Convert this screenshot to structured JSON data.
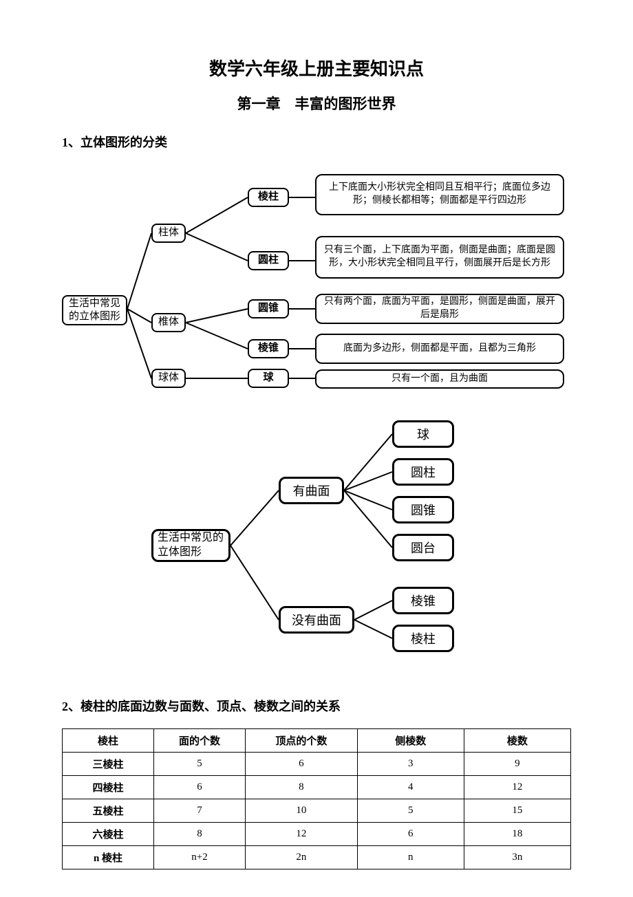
{
  "colors": {
    "text": "#000000",
    "background": "#ffffff",
    "border": "#000000"
  },
  "title": "数学六年级上册主要知识点",
  "chapter": "第一章　丰富的图形世界",
  "section1": "1、立体图形的分类",
  "section2": "2、棱柱的底面边数与面数、顶点、棱数之间的关系",
  "diagram1": {
    "type": "tree",
    "root": "生活中常见的立体图形",
    "branches": {
      "b1": "柱体",
      "b2": "椎体",
      "b3": "球体",
      "b1a": "棱柱",
      "b1b": "圆柱",
      "b2a": "圆锥",
      "b2b": "棱锥",
      "b3a": "球"
    },
    "descriptions": {
      "d1a": "上下底面大小形状完全相同且互相平行；底面位多边形；侧棱长都相等；侧面都是平行四边形",
      "d1b": "只有三个面，上下底面为平面，侧面是曲面；底面是圆形，大小形状完全相同且平行，侧面展开后是长方形",
      "d2a": "只有两个面，底面为平面，是圆形，侧面是曲面，展开后是扇形",
      "d2b": "底面为多边形，侧面都是平面，且都为三角形",
      "d3a": "只有一个面，且为曲面"
    }
  },
  "diagram2": {
    "type": "tree",
    "root": "生活中常见的立体图形",
    "branch1": "有曲面",
    "branch2": "没有曲面",
    "leaves1": [
      "球",
      "圆柱",
      "圆锥",
      "圆台"
    ],
    "leaves2": [
      "棱锥",
      "棱柱"
    ]
  },
  "table": {
    "type": "table",
    "columns": [
      "棱柱",
      "面的个数",
      "顶点的个数",
      "侧棱数",
      "棱数"
    ],
    "rows": [
      [
        "三棱柱",
        "5",
        "6",
        "3",
        "9"
      ],
      [
        "四棱柱",
        "6",
        "8",
        "4",
        "12"
      ],
      [
        "五棱柱",
        "7",
        "10",
        "5",
        "15"
      ],
      [
        "六棱柱",
        "8",
        "12",
        "6",
        "18"
      ],
      [
        "n 棱柱",
        "n+2",
        "2n",
        "n",
        "3n"
      ]
    ],
    "column_widths_pct": [
      18,
      18,
      22,
      21,
      21
    ],
    "border_color": "#000000"
  }
}
